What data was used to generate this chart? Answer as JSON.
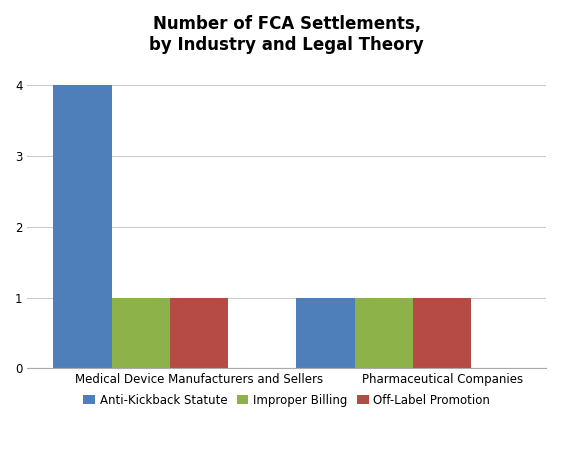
{
  "title": "Number of FCA Settlements,\nby Industry and Legal Theory",
  "categories": [
    "Medical Device Manufacturers and Sellers",
    "Pharmaceutical Companies"
  ],
  "series": [
    {
      "name": "Anti-Kickback Statute",
      "values": [
        4,
        1
      ],
      "color": "#4f7fbb"
    },
    {
      "name": "Improper Billing",
      "values": [
        1,
        1
      ],
      "color": "#8db24a"
    },
    {
      "name": "Off-Label Promotion",
      "values": [
        1,
        1
      ],
      "color": "#b54b44"
    }
  ],
  "ylim": [
    0,
    4.3
  ],
  "yticks": [
    0,
    1,
    2,
    3,
    4
  ],
  "bar_width": 0.18,
  "background_color": "#ffffff",
  "grid_color": "#cccccc",
  "title_fontsize": 12,
  "tick_fontsize": 8.5,
  "legend_fontsize": 8.5
}
